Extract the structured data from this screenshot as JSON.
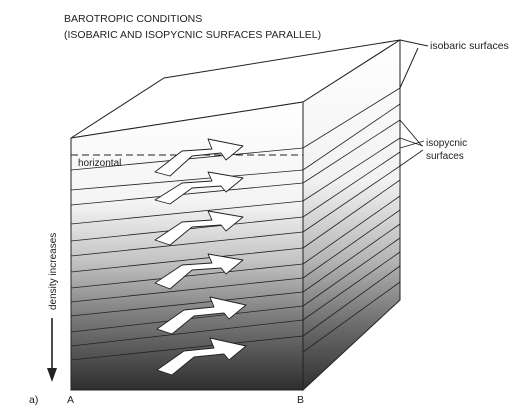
{
  "title": {
    "line1": "BAROTROPIC CONDITIONS",
    "line2": "(ISOBARIC AND ISOPYCNIC SURFACES PARALLEL)"
  },
  "labels": {
    "isobaric": "isobaric surfaces",
    "isopycnic_1": "isopycnic",
    "isopycnic_2": "surfaces",
    "horizontal": "horizontal",
    "density": "density increases",
    "panel": "a)",
    "point_a": "A",
    "point_b": "B"
  },
  "colors": {
    "ink": "#222222",
    "shade_light": "#ffffff",
    "shade_dark": "#2a2a2a"
  }
}
